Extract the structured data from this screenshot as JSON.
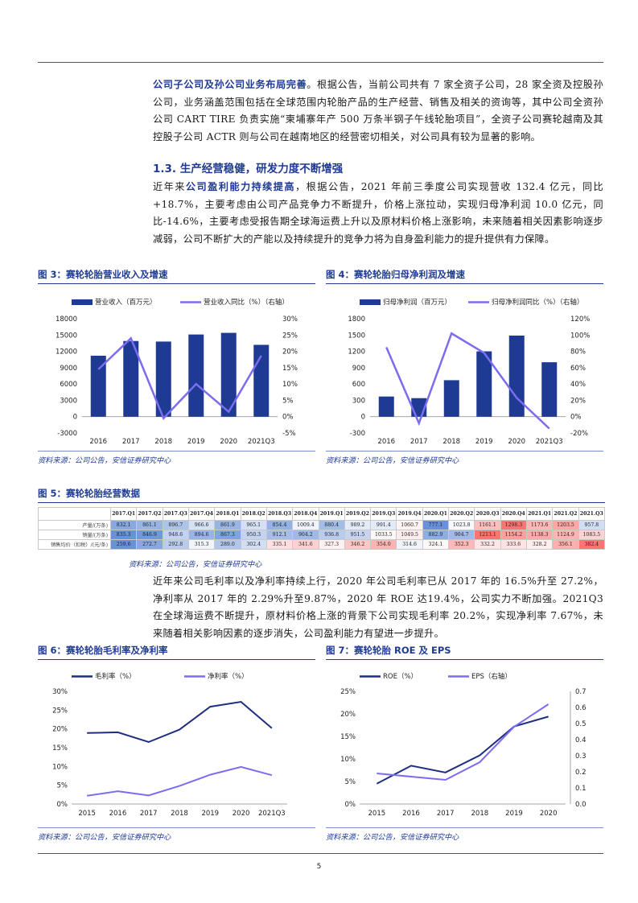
{
  "paragraphs": {
    "p1_bold": "公司子公司及孙公司业务布局完善",
    "p1_text": "。根据公告，当前公司共有 7 家全资子公司，28 家全资及控股孙公司，业务涵盖范围包括在全球范围内轮胎产品的生产经营、销售及相关的资询等，其中公司全资孙公司 CART TIRE 负责实施“柬埔寨年产 500 万条半钢子午线轮胎项目”，全资子公司赛轮越南及其控股子公司 ACTR 则与公司在越南地区的经营密切相关，对公司具有较为显著的影响。",
    "section_heading": "1.3. 生产经营稳健，研发力度不断增强",
    "p2_pre": "近年来",
    "p2_bold": "公司盈利能力持续提高",
    "p2_text": "，根据公告，2021 年前三季度公司实现营收 132.4 亿元，同比+18.7%，主要考虑由公司产品竞争力不断提升，价格上涨拉动，实现归母净利润 10.0 亿元，同比-14.6%，主要考虑受报告期全球海运费上升以及原材料价格上涨影响，未来随着相关因素影响逐步减弱，公司不断扩大的产能以及持续提升的竞争力将为自身盈利能力的提升提供有力保障。",
    "p3_text": "近年来公司毛利率以及净利率持续上行，2020 年公司毛利率已从 2017 年的 16.5%升至 27.2%，净利率从 2017 年的 2.29%升至9.87%，2020 年 ROE 达19.4%，公司实力不断加强。2021Q3 在全球海运费不断提升，原材料价格上涨的背景下公司实现毛利率 20.2%，实现净利率 7.67%，未来随着相关影响因素的逐步消失，公司盈利能力有望进一步提升。"
  },
  "figures": {
    "fig3_title": "图 3：赛轮轮胎营业收入及增速",
    "fig4_title": "图 4：赛轮轮胎归母净利润及增速",
    "fig5_title": "图 5：赛轮轮胎经营数据",
    "fig6_title": "图 6：赛轮轮胎毛利率及净利率",
    "fig7_title": "图 7：赛轮轮胎 ROE 及 EPS",
    "source": "资料来源：公司公告，安信证券研究中心"
  },
  "colors": {
    "bar": "#1f3a93",
    "line_light": "#7b6cf0",
    "line_dark": "#1f2f7f",
    "title": "#1f3a93"
  },
  "page_number": "5",
  "chart_data": [
    {
      "id": "fig3",
      "type": "bar",
      "categories": [
        "2016",
        "2017",
        "2018",
        "2019",
        "2020",
        "2021Q3"
      ],
      "series": [
        {
          "name": "营业收入（百万元）",
          "values": [
            11200,
            13900,
            13800,
            15100,
            15400,
            13200
          ]
        },
        {
          "name": "营业收入同比（%）（右轴）",
          "values": [
            14.5,
            24.0,
            -0.5,
            10.0,
            1.5,
            18.7
          ]
        }
      ],
      "yticks": [
        "18000",
        "15000",
        "12000",
        "9000",
        "6000",
        "3000",
        "0",
        "-3000"
      ],
      "y2ticks": [
        "30%",
        "25%",
        "20%",
        "15%",
        "10%",
        "5%",
        "0%",
        "-5%"
      ],
      "ylim": [
        -3000,
        18000
      ],
      "y2lim": [
        -5,
        30
      ]
    },
    {
      "id": "fig4",
      "type": "bar",
      "categories": [
        "2016",
        "2017",
        "2018",
        "2019",
        "2020",
        "2021Q3"
      ],
      "series": [
        {
          "name": "归母净利润（百万元）",
          "values": [
            370,
            340,
            670,
            1200,
            1490,
            1000
          ]
        },
        {
          "name": "归母净利润同比（%）（右轴）",
          "values": [
            85,
            -8,
            102,
            78,
            23,
            -14.6
          ]
        }
      ],
      "yticks": [
        "1800",
        "1500",
        "1200",
        "900",
        "600",
        "300",
        "0",
        "-300"
      ],
      "y2ticks": [
        "120%",
        "100%",
        "80%",
        "60%",
        "40%",
        "20%",
        "0%",
        "-20%"
      ],
      "ylim": [
        -300,
        1800
      ],
      "y2lim": [
        -20,
        120
      ]
    },
    {
      "id": "fig5",
      "type": "table",
      "columns": [
        "2017.Q1",
        "2017.Q2",
        "2017.Q3",
        "2017.Q4",
        "2018.Q1",
        "2018.Q2",
        "2018.Q3",
        "2018.Q4",
        "2019.Q1",
        "2019.Q2",
        "2019.Q3",
        "2019.Q4",
        "2020.Q1",
        "2020.Q2",
        "2020.Q3",
        "2020.Q4",
        "2021.Q1",
        "2021.Q2",
        "2021.Q3"
      ],
      "rows": [
        {
          "label": "产量/(万条)",
          "values": [
            "832.1",
            "861.1",
            "896.7",
            "966.6",
            "861.9",
            "965.1",
            "854.4",
            "1009.4",
            "880.4",
            "989.2",
            "991.4",
            "1060.7",
            "777.1",
            "1023.8",
            "1161.1",
            "1298.3",
            "1173.6",
            "1203.5",
            "957.8"
          ]
        },
        {
          "label": "销量/(万条)",
          "values": [
            "835.3",
            "846.9",
            "948.6",
            "894.6",
            "867.3",
            "950.3",
            "912.1",
            "904.2",
            "936.8",
            "951.5",
            "1033.5",
            "1049.5",
            "882.9",
            "904.7",
            "1213.1",
            "1154.2",
            "1138.3",
            "1124.9",
            "1083.5"
          ]
        },
        {
          "label": "销售均价（扣税）/(元/条)",
          "values": [
            "259.6",
            "272.7",
            "292.8",
            "315.3",
            "289.0",
            "302.4",
            "335.1",
            "341.6",
            "327.3",
            "346.2",
            "354.0",
            "314.6",
            "324.1",
            "352.3",
            "332.2",
            "333.6",
            "328.2",
            "356.1",
            "382.4"
          ]
        }
      ]
    },
    {
      "id": "fig6",
      "type": "line",
      "x": [
        "2015",
        "2016",
        "2017",
        "2018",
        "2019",
        "2020",
        "2021Q3"
      ],
      "series": [
        {
          "name": "毛利率（%）",
          "values": [
            18.9,
            19.1,
            16.5,
            19.8,
            25.9,
            27.2,
            20.2
          ]
        },
        {
          "name": "净利率（%）",
          "values": [
            2.2,
            3.4,
            2.29,
            4.8,
            7.8,
            9.87,
            7.67
          ]
        }
      ],
      "yticks": [
        "30%",
        "25%",
        "20%",
        "15%",
        "10%",
        "5%",
        "0%"
      ],
      "ylim": [
        0,
        30
      ]
    },
    {
      "id": "fig7",
      "type": "line",
      "x": [
        "2015",
        "2016",
        "2017",
        "2018",
        "2019",
        "2020"
      ],
      "series": [
        {
          "name": "ROE（%）",
          "values": [
            4.5,
            8.5,
            7.0,
            10.8,
            17.2,
            19.4
          ]
        },
        {
          "name": "EPS（右轴）",
          "values": [
            0.19,
            0.17,
            0.15,
            0.26,
            0.48,
            0.62
          ]
        }
      ],
      "yticks": [
        "25%",
        "20%",
        "15%",
        "10%",
        "5%",
        "0%"
      ],
      "y2ticks": [
        "0.7",
        "0.6",
        "0.5",
        "0.4",
        "0.3",
        "0.2",
        "0.1",
        "0.0"
      ],
      "ylim": [
        0,
        25
      ],
      "y2lim": [
        0,
        0.7
      ]
    }
  ]
}
